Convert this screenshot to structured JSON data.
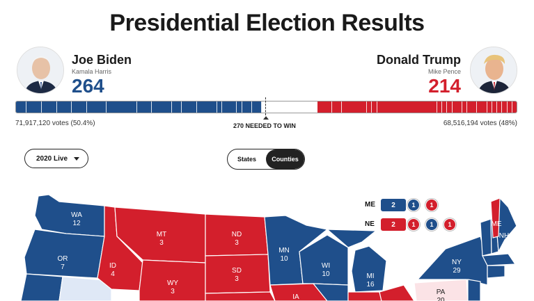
{
  "title": "Presidential Election Results",
  "colors": {
    "dem": "#1f4f8b",
    "rep": "#d31f2c",
    "lean_dem": "#dfe8f6",
    "lean_rep": "#fbe3e6"
  },
  "candidates": {
    "left": {
      "name": "Joe Biden",
      "vp": "Kamala Harris",
      "electoral": "264",
      "votes": "71,917,120 votes (50.4%)",
      "electoral_value": 264
    },
    "right": {
      "name": "Donald Trump",
      "vp": "Mike Pence",
      "electoral": "214",
      "votes": "68,516,194 votes (48%)",
      "electoral_value": 214
    }
  },
  "bar": {
    "total": 538,
    "needed_label": "270 NEEDED TO WIN"
  },
  "controls": {
    "year_select": "2020 Live",
    "view_toggle": [
      {
        "label": "States",
        "active": false
      },
      {
        "label": "Counties",
        "active": true
      }
    ]
  },
  "splits": [
    {
      "state": "ME",
      "box": "2",
      "box_color": "dem",
      "districts": [
        {
          "v": "1",
          "c": "dem"
        },
        {
          "v": "1",
          "c": "rep"
        }
      ]
    },
    {
      "state": "NE",
      "box": "2",
      "box_color": "rep",
      "districts": [
        {
          "v": "1",
          "c": "rep"
        },
        {
          "v": "1",
          "c": "dem"
        },
        {
          "v": "1",
          "c": "rep"
        }
      ]
    }
  ],
  "map_states": [
    {
      "abbr": "WA",
      "ev": "12",
      "party": "dem"
    },
    {
      "abbr": "OR",
      "ev": "7",
      "party": "dem"
    },
    {
      "abbr": "ID",
      "ev": "4",
      "party": "rep"
    },
    {
      "abbr": "MT",
      "ev": "3",
      "party": "rep"
    },
    {
      "abbr": "WY",
      "ev": "3",
      "party": "rep"
    },
    {
      "abbr": "ND",
      "ev": "3",
      "party": "rep"
    },
    {
      "abbr": "SD",
      "ev": "3",
      "party": "rep"
    },
    {
      "abbr": "MN",
      "ev": "10",
      "party": "dem"
    },
    {
      "abbr": "WI",
      "ev": "10",
      "party": "dem"
    },
    {
      "abbr": "MI",
      "ev": "16",
      "party": "dem"
    },
    {
      "abbr": "IA",
      "ev": "",
      "party": "rep"
    },
    {
      "abbr": "NY",
      "ev": "29",
      "party": "dem"
    },
    {
      "abbr": "PA",
      "ev": "20",
      "party": "lean_rep"
    },
    {
      "abbr": "ME",
      "ev": "",
      "party": "dem"
    },
    {
      "abbr": "NH",
      "ev": "",
      "party": "dem"
    }
  ]
}
